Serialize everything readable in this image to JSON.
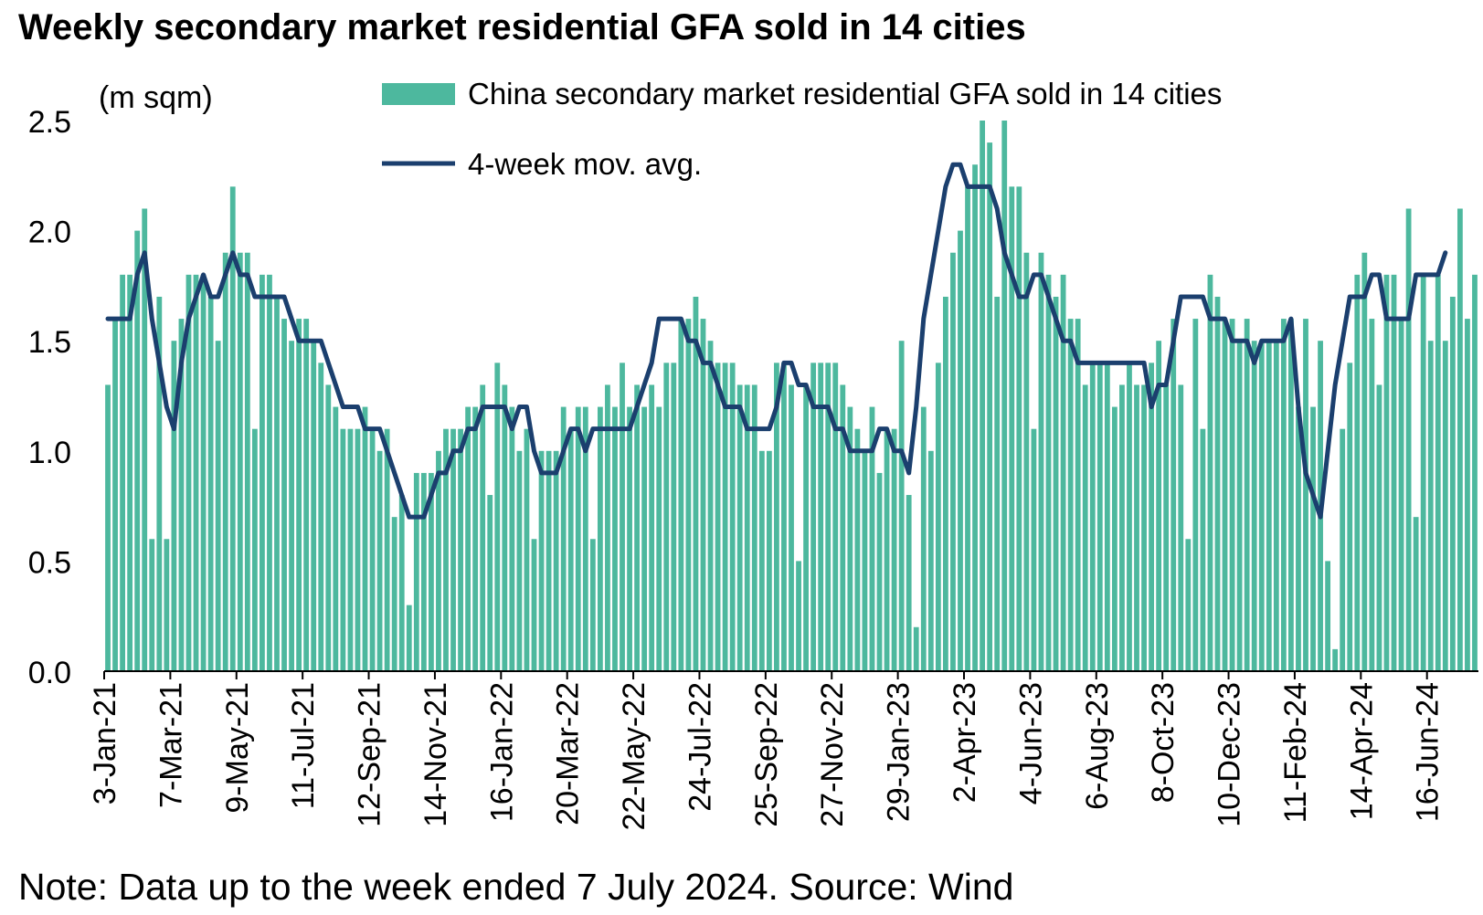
{
  "title": "Weekly secondary market residential GFA sold in 14 cities",
  "note": "Note: Data up to the week ended 7 July 2024. Source: Wind",
  "colors": {
    "bar": "#4DB89E",
    "line": "#1B3F6E",
    "axis": "#000000"
  },
  "chart_data": {
    "type": "bar",
    "unit_label": "(m sqm)",
    "ylim": [
      0,
      2.5
    ],
    "yticks": [
      "0.0",
      "0.5",
      "1.0",
      "1.5",
      "2.0",
      "2.5"
    ],
    "xticks": [
      "3-Jan-21",
      "7-Mar-21",
      "9-May-21",
      "11-Jul-21",
      "12-Sep-21",
      "14-Nov-21",
      "16-Jan-22",
      "20-Mar-22",
      "22-May-22",
      "24-Jul-22",
      "25-Sep-22",
      "27-Nov-22",
      "29-Jan-23",
      "2-Apr-23",
      "4-Jun-23",
      "6-Aug-23",
      "8-Oct-23",
      "10-Dec-23",
      "11-Feb-24",
      "14-Apr-24",
      "16-Jun-24"
    ],
    "grid": false,
    "legend_position": "top",
    "series": [
      {
        "name": "China secondary market residential GFA sold in 14 cities",
        "type": "bar",
        "values": [
          1.3,
          1.6,
          1.8,
          1.8,
          2.0,
          2.1,
          0.6,
          1.7,
          0.6,
          1.5,
          1.6,
          1.8,
          1.8,
          1.8,
          1.7,
          1.5,
          1.9,
          2.2,
          1.9,
          1.9,
          1.1,
          1.8,
          1.8,
          1.7,
          1.6,
          1.5,
          1.6,
          1.6,
          1.5,
          1.4,
          1.3,
          1.2,
          1.1,
          1.1,
          1.1,
          1.2,
          1.1,
          1.0,
          1.1,
          0.7,
          0.8,
          0.3,
          0.9,
          0.9,
          0.9,
          1.0,
          1.1,
          1.1,
          1.1,
          1.2,
          1.2,
          1.3,
          0.8,
          1.4,
          1.3,
          1.2,
          1.0,
          1.1,
          0.6,
          1.0,
          1.0,
          1.0,
          1.2,
          1.1,
          1.2,
          1.2,
          0.6,
          1.2,
          1.3,
          1.2,
          1.4,
          1.2,
          1.3,
          1.2,
          1.3,
          1.2,
          1.4,
          1.4,
          1.6,
          1.6,
          1.7,
          1.6,
          1.5,
          1.4,
          1.4,
          1.4,
          1.3,
          1.3,
          1.3,
          1.0,
          1.0,
          1.4,
          1.4,
          1.3,
          0.5,
          1.3,
          1.4,
          1.4,
          1.4,
          1.4,
          1.3,
          1.2,
          1.1,
          1.0,
          1.2,
          0.9,
          1.1,
          1.1,
          1.5,
          0.8,
          0.2,
          1.2,
          1.0,
          1.4,
          1.7,
          1.9,
          2.0,
          2.2,
          2.3,
          2.5,
          2.4,
          1.7,
          2.5,
          2.2,
          2.2,
          1.9,
          1.1,
          1.9,
          1.8,
          1.7,
          1.8,
          1.6,
          1.6,
          1.3,
          1.4,
          1.4,
          1.4,
          1.2,
          1.3,
          1.4,
          1.3,
          1.3,
          1.4,
          1.5,
          1.3,
          1.6,
          1.3,
          0.6,
          1.6,
          1.1,
          1.8,
          1.7,
          1.6,
          1.6,
          1.5,
          1.6,
          1.5,
          1.5,
          1.5,
          1.5,
          1.6,
          1.6,
          1.2,
          1.6,
          1.2,
          1.5,
          0.5,
          0.1,
          1.1,
          1.4,
          1.8,
          1.9,
          1.6,
          1.3,
          1.8,
          1.8,
          1.6,
          2.1,
          0.7,
          1.8,
          1.5,
          1.8,
          1.5,
          1.7,
          2.1,
          1.6,
          1.8
        ]
      },
      {
        "name": "4-week mov. avg.",
        "type": "line",
        "values": [
          1.6,
          1.6,
          1.6,
          1.6,
          1.8,
          1.9,
          1.6,
          1.4,
          1.2,
          1.1,
          1.4,
          1.6,
          1.7,
          1.8,
          1.7,
          1.7,
          1.8,
          1.9,
          1.8,
          1.8,
          1.7,
          1.7,
          1.7,
          1.7,
          1.7,
          1.6,
          1.5,
          1.5,
          1.5,
          1.5,
          1.4,
          1.3,
          1.2,
          1.2,
          1.2,
          1.1,
          1.1,
          1.1,
          1.0,
          0.9,
          0.8,
          0.7,
          0.7,
          0.7,
          0.8,
          0.9,
          0.9,
          1.0,
          1.0,
          1.1,
          1.1,
          1.2,
          1.2,
          1.2,
          1.2,
          1.1,
          1.2,
          1.2,
          1.0,
          0.9,
          0.9,
          0.9,
          1.0,
          1.1,
          1.1,
          1.0,
          1.1,
          1.1,
          1.1,
          1.1,
          1.1,
          1.1,
          1.2,
          1.3,
          1.4,
          1.6,
          1.6,
          1.6,
          1.6,
          1.5,
          1.5,
          1.4,
          1.4,
          1.3,
          1.2,
          1.2,
          1.2,
          1.1,
          1.1,
          1.1,
          1.1,
          1.2,
          1.4,
          1.4,
          1.3,
          1.3,
          1.2,
          1.2,
          1.2,
          1.1,
          1.1,
          1.0,
          1.0,
          1.0,
          1.0,
          1.1,
          1.1,
          1.0,
          1.0,
          0.9,
          1.2,
          1.6,
          1.8,
          2.0,
          2.2,
          2.3,
          2.3,
          2.2,
          2.2,
          2.2,
          2.2,
          2.1,
          1.9,
          1.8,
          1.7,
          1.7,
          1.8,
          1.8,
          1.7,
          1.6,
          1.5,
          1.5,
          1.4,
          1.4,
          1.4,
          1.4,
          1.4,
          1.4,
          1.4,
          1.4,
          1.4,
          1.4,
          1.2,
          1.3,
          1.3,
          1.5,
          1.7,
          1.7,
          1.7,
          1.7,
          1.6,
          1.6,
          1.6,
          1.5,
          1.5,
          1.5,
          1.4,
          1.5,
          1.5,
          1.5,
          1.5,
          1.6,
          1.2,
          0.9,
          0.8,
          0.7,
          1.0,
          1.3,
          1.5,
          1.7,
          1.7,
          1.7,
          1.8,
          1.8,
          1.6,
          1.6,
          1.6,
          1.6,
          1.8,
          1.8,
          1.8,
          1.8,
          1.9
        ]
      }
    ]
  }
}
